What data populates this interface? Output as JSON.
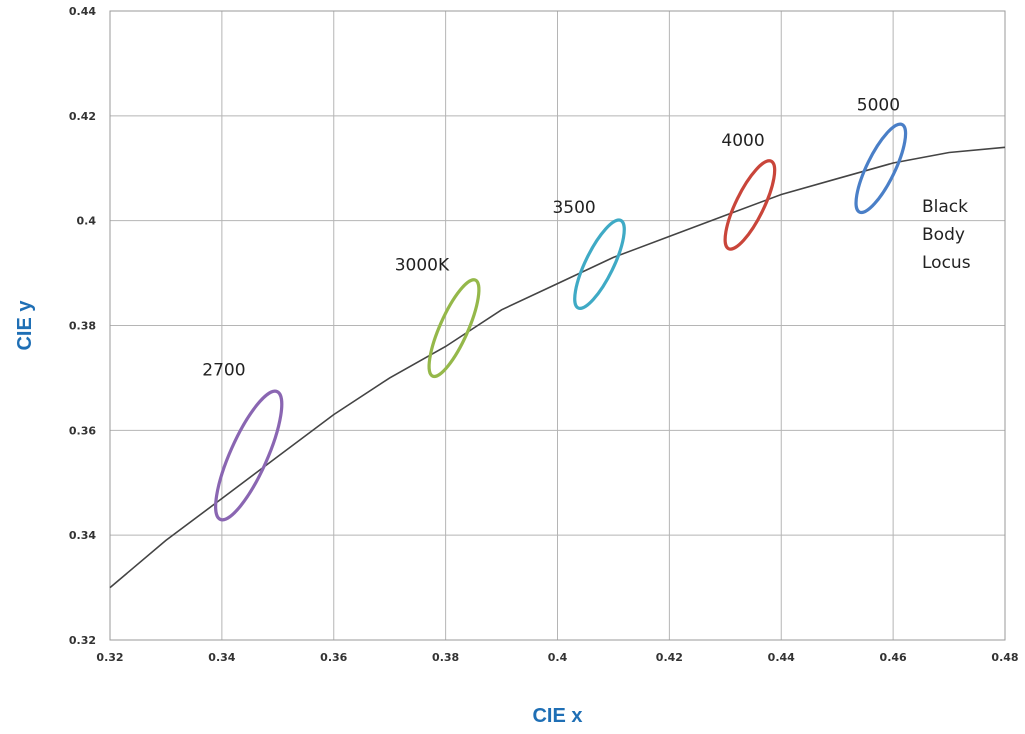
{
  "chart_data": {
    "type": "line",
    "title": "",
    "xlabel": "CIE x",
    "ylabel": "CIE y",
    "xlim": [
      0.32,
      0.48
    ],
    "ylim": [
      0.32,
      0.44
    ],
    "x_ticks": [
      "0.32",
      "0.34",
      "0.36",
      "0.38",
      "0.4",
      "0.42",
      "0.44",
      "0.46",
      "0.48"
    ],
    "y_ticks": [
      "0.32",
      "0.34",
      "0.36",
      "0.38",
      "0.4",
      "0.42",
      "0.44"
    ],
    "grid": true,
    "series": [
      {
        "name": "Black Body Locus",
        "color": "#444444",
        "x": [
          0.32,
          0.33,
          0.34,
          0.35,
          0.36,
          0.37,
          0.38,
          0.39,
          0.4,
          0.41,
          0.42,
          0.43,
          0.44,
          0.45,
          0.46,
          0.47,
          0.48
        ],
        "y": [
          0.33,
          0.339,
          0.347,
          0.355,
          0.363,
          0.37,
          0.376,
          0.383,
          0.388,
          0.393,
          0.397,
          0.401,
          0.405,
          0.408,
          0.411,
          0.413,
          0.414
        ]
      }
    ],
    "ellipses": [
      {
        "label": "2700",
        "color": "#8a66b2",
        "center_x": 0.3448,
        "center_y": 0.3552,
        "semi_major": 0.0125,
        "semi_minor": 0.0033,
        "angle_deg": 66
      },
      {
        "label": "3000K",
        "color": "#95b84a",
        "center_x": 0.3815,
        "center_y": 0.3795,
        "semi_major": 0.0094,
        "semi_minor": 0.0025,
        "angle_deg": 66
      },
      {
        "label": "3500",
        "color": "#3faac5",
        "center_x": 0.4075,
        "center_y": 0.3917,
        "semi_major": 0.0087,
        "semi_minor": 0.0025,
        "angle_deg": 64
      },
      {
        "label": "4000",
        "color": "#c9453a",
        "center_x": 0.4344,
        "center_y": 0.403,
        "semi_major": 0.0087,
        "semi_minor": 0.0025,
        "angle_deg": 64
      },
      {
        "label": "5000",
        "color": "#4a7fc7",
        "center_x": 0.4578,
        "center_y": 0.41,
        "semi_major": 0.0087,
        "semi_minor": 0.0025,
        "angle_deg": 64
      }
    ],
    "annotations": [
      {
        "text": "2700",
        "x": 0.3365,
        "y": 0.3705
      },
      {
        "text": "3000K",
        "x": 0.3709,
        "y": 0.3905
      },
      {
        "text": "3500",
        "x": 0.3991,
        "y": 0.4015
      },
      {
        "text": "4000",
        "x": 0.4293,
        "y": 0.4142
      },
      {
        "text": "5000",
        "x": 0.4535,
        "y": 0.421
      }
    ],
    "locus_label": [
      "Black",
      "Body",
      "Locus"
    ]
  }
}
